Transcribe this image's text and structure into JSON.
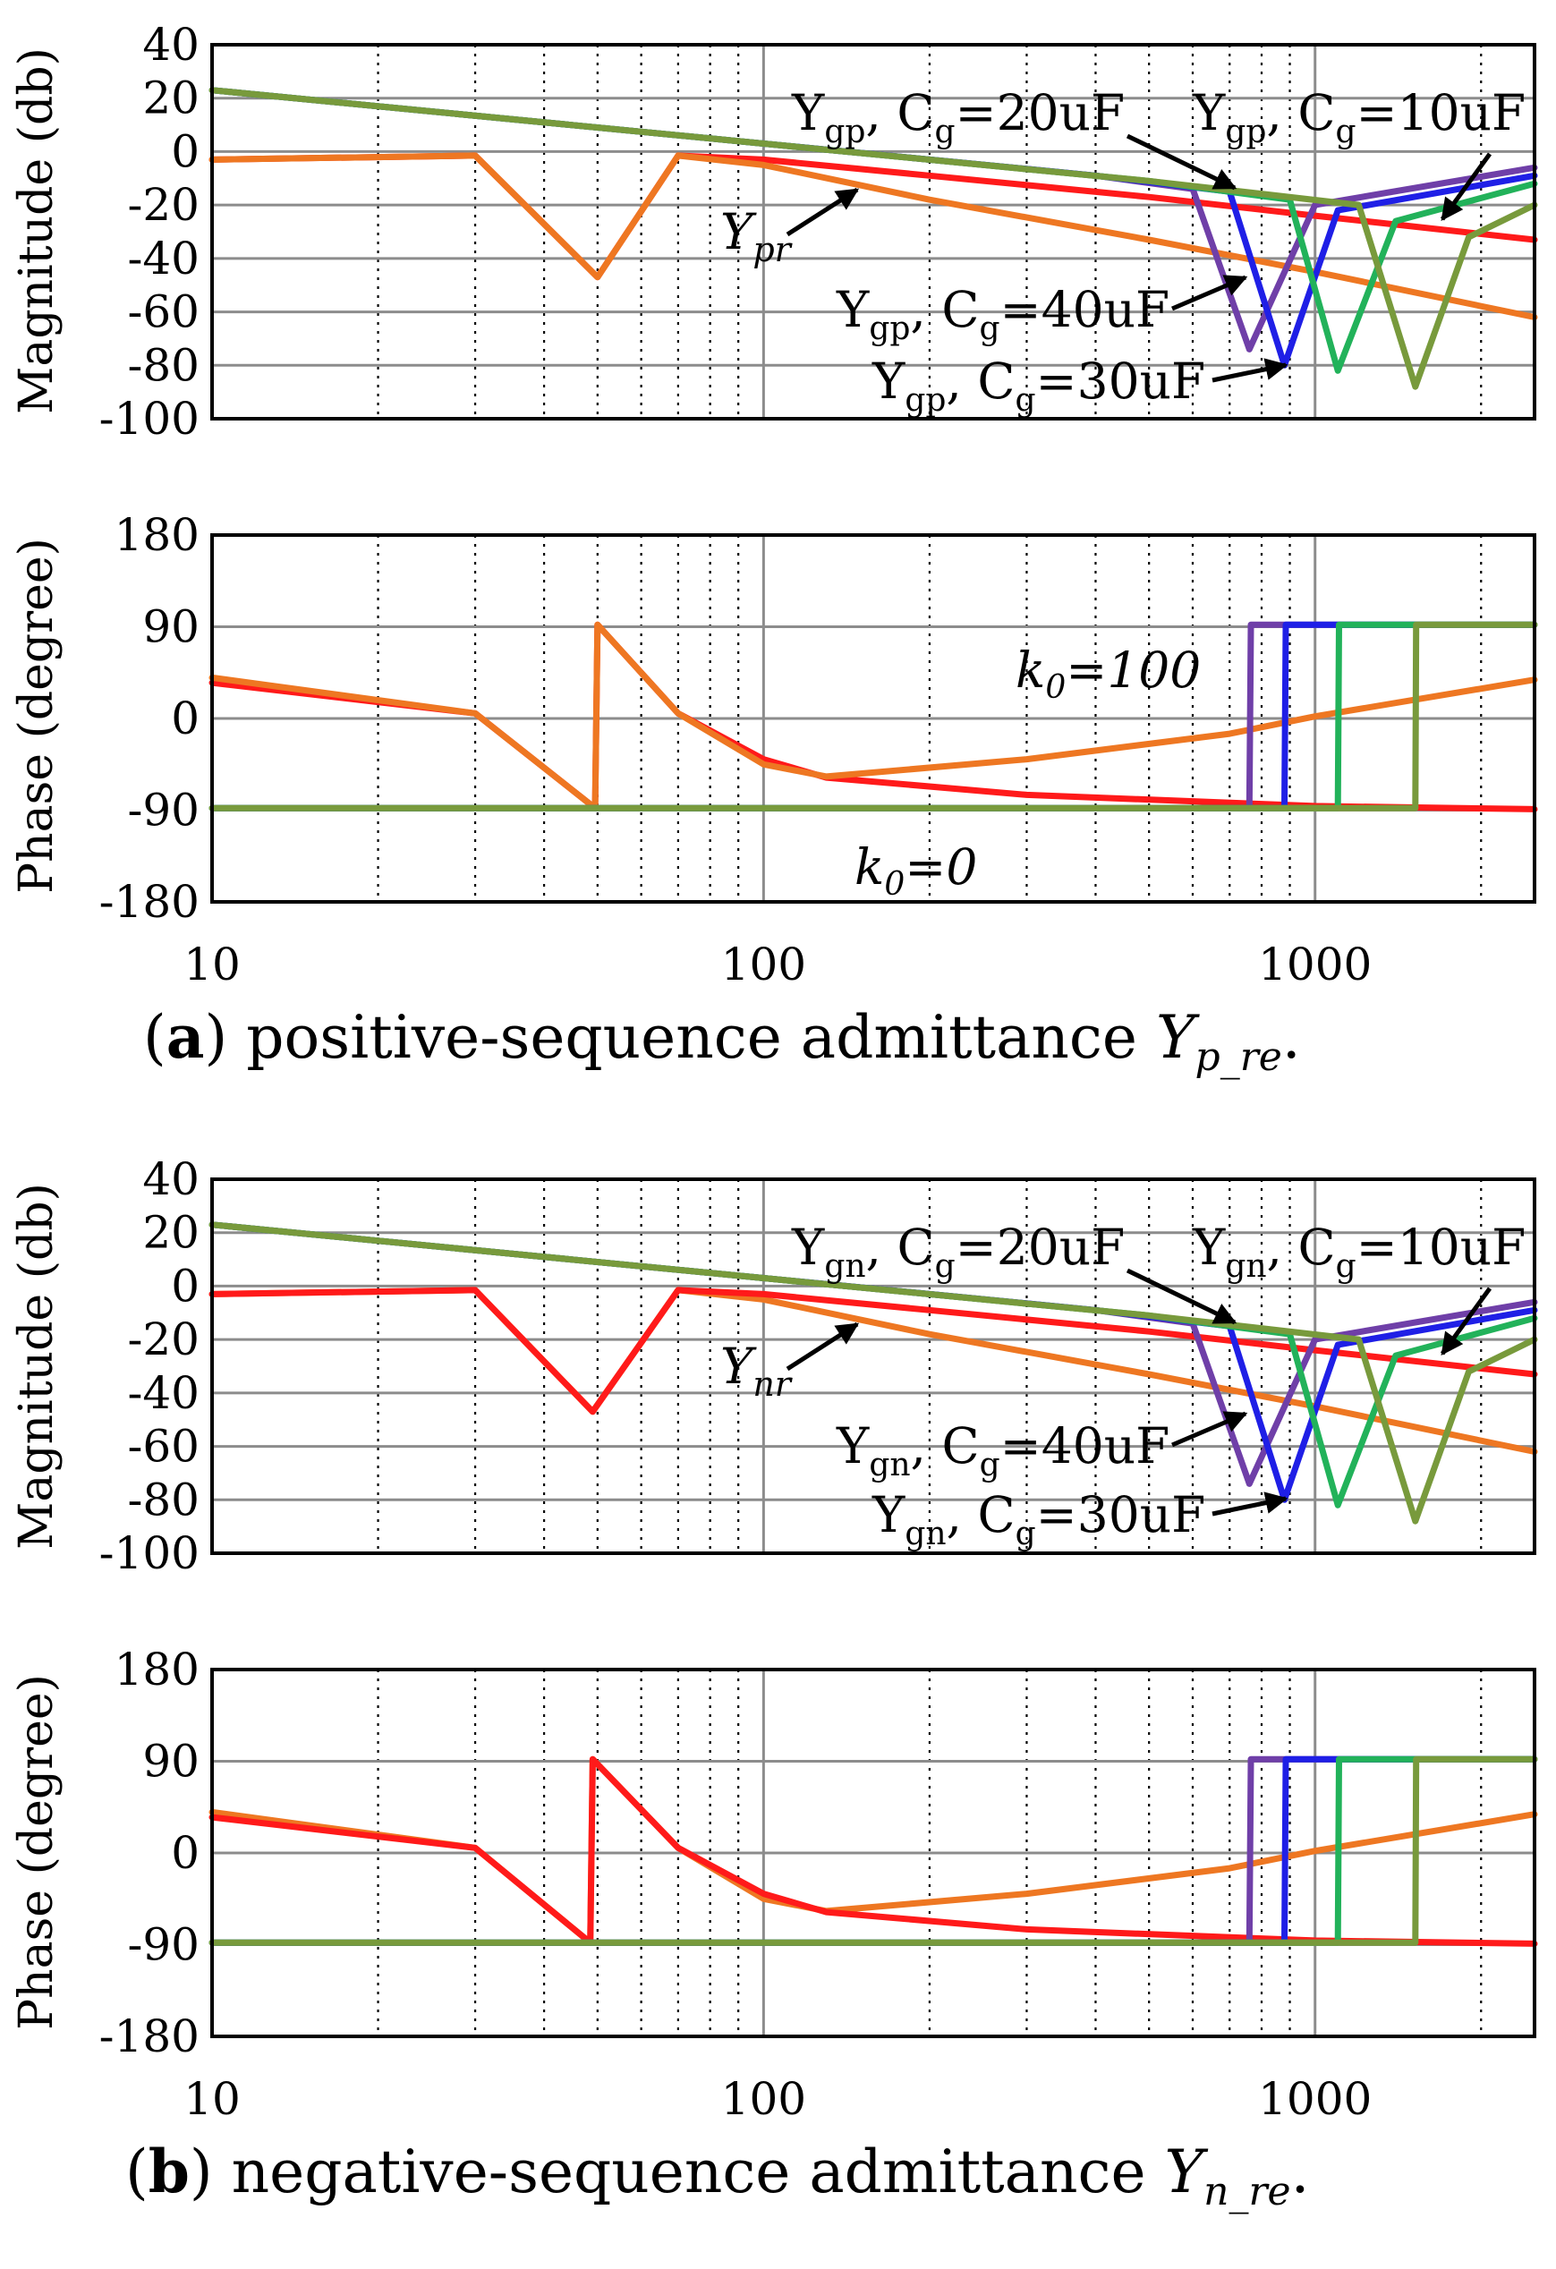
{
  "figure": {
    "caption_a": {
      "label": "a",
      "text": "positive-sequence admittance",
      "symbol": "Y",
      "subscript": "p_re",
      "tail": "."
    },
    "caption_b": {
      "label": "b",
      "text": "negative-sequence admittance",
      "symbol": "Y",
      "subscript": "n_re",
      "tail": "."
    }
  },
  "chart_data": [
    {
      "panel": "a-magnitude",
      "type": "line",
      "xscale": "log",
      "xlim": [
        10,
        2500
      ],
      "ylim": [
        -100,
        40
      ],
      "ylabel": "Magnitude (db)",
      "yticks": [
        "40",
        "20",
        "0",
        "-20",
        "-40",
        "-60",
        "-80",
        "-100"
      ],
      "annotations": {
        "y_main": "Y",
        "y_main_sub": "pr",
        "c20_sym": "Y",
        "c20_sub": "gp",
        "c20_mid": ", C",
        "c20_csub": "g",
        "c20_val": "=20uF",
        "c10_sym": "Y",
        "c10_sub": "gp",
        "c10_mid": ", C",
        "c10_csub": "g",
        "c10_val": "=10uF",
        "c40_sym": "Y",
        "c40_sub": "gp",
        "c40_mid": ", C",
        "c40_csub": "g",
        "c40_val": "=40uF",
        "c30_sym": "Y",
        "c30_sub": "gp",
        "c30_mid": ", C",
        "c30_csub": "g",
        "c30_val": "=30uF"
      },
      "series": [
        {
          "name": "Y_pr (k0=0)",
          "color": "#ff1a1a",
          "points": [
            [
              10,
              -3
            ],
            [
              30,
              -1.5
            ],
            [
              50,
              -47
            ],
            [
              70,
              -1.5
            ],
            [
              100,
              -3
            ],
            [
              200,
              -9
            ],
            [
              500,
              -17
            ],
            [
              1000,
              -24
            ],
            [
              2500,
              -33
            ]
          ]
        },
        {
          "name": "Y_pr (k0=100)",
          "color": "#ee7722",
          "points": [
            [
              10,
              -3
            ],
            [
              30,
              -1.5
            ],
            [
              50,
              -47
            ],
            [
              70,
              -1.5
            ],
            [
              100,
              -5
            ],
            [
              200,
              -18
            ],
            [
              500,
              -33
            ],
            [
              1000,
              -45
            ],
            [
              2500,
              -62
            ]
          ]
        },
        {
          "name": "Y_gp, Cg=40uF",
          "color": "#6f3fa8",
          "points": [
            [
              10,
              23
            ],
            [
              100,
              3
            ],
            [
              400,
              -9
            ],
            [
              600,
              -14
            ],
            [
              760,
              -74
            ],
            [
              1000,
              -20
            ],
            [
              2500,
              -6
            ]
          ]
        },
        {
          "name": "Y_gp, Cg=30uF",
          "color": "#1f1fe6",
          "points": [
            [
              10,
              23
            ],
            [
              100,
              3
            ],
            [
              400,
              -9
            ],
            [
              700,
              -15
            ],
            [
              880,
              -80
            ],
            [
              1100,
              -22
            ],
            [
              2500,
              -9
            ]
          ]
        },
        {
          "name": "Y_gp, Cg=20uF",
          "color": "#22b25a",
          "points": [
            [
              10,
              23
            ],
            [
              100,
              3
            ],
            [
              500,
              -11
            ],
            [
              900,
              -18
            ],
            [
              1100,
              -82
            ],
            [
              1400,
              -26
            ],
            [
              2500,
              -12
            ]
          ]
        },
        {
          "name": "Y_gp, Cg=10uF",
          "color": "#789a3c",
          "points": [
            [
              10,
              23
            ],
            [
              100,
              3
            ],
            [
              500,
              -11
            ],
            [
              1200,
              -20
            ],
            [
              1520,
              -88
            ],
            [
              1900,
              -32
            ],
            [
              2500,
              -20
            ]
          ]
        }
      ]
    },
    {
      "panel": "a-phase",
      "type": "line",
      "xscale": "log",
      "xlim": [
        10,
        2500
      ],
      "ylim": [
        -180,
        180
      ],
      "ylabel": "Phase (degree)",
      "yticks": [
        "180",
        "90",
        "0",
        "-90",
        "-180"
      ],
      "xticks": [
        "10",
        "100",
        "1000"
      ],
      "annotations": {
        "k100_k": "k",
        "k100_sub": "0",
        "k100_val": "=100",
        "k0_k": "k",
        "k0_sub": "0",
        "k0_val": "=0"
      },
      "series": [
        {
          "name": "k0=0",
          "color": "#ff1a1a",
          "points": [
            [
              10,
              35
            ],
            [
              30,
              5
            ],
            [
              49.5,
              -88
            ],
            [
              50,
              92
            ],
            [
              70,
              5
            ],
            [
              100,
              -40
            ],
            [
              130,
              -58
            ],
            [
              300,
              -75
            ],
            [
              1000,
              -86
            ],
            [
              2500,
              -89
            ]
          ]
        },
        {
          "name": "k0=100",
          "color": "#ee7722",
          "points": [
            [
              10,
              40
            ],
            [
              30,
              5
            ],
            [
              49.5,
              -88
            ],
            [
              50,
              92
            ],
            [
              70,
              5
            ],
            [
              100,
              -45
            ],
            [
              130,
              -57
            ],
            [
              300,
              -40
            ],
            [
              700,
              -15
            ],
            [
              1000,
              2
            ],
            [
              2500,
              38
            ]
          ]
        },
        {
          "name": "Cg=40uF",
          "color": "#6f3fa8",
          "points": [
            [
              10,
              -88
            ],
            [
              760,
              -88
            ],
            [
              765,
              92
            ],
            [
              2500,
              92
            ]
          ]
        },
        {
          "name": "Cg=30uF",
          "color": "#1f1fe6",
          "points": [
            [
              10,
              -88
            ],
            [
              880,
              -88
            ],
            [
              885,
              92
            ],
            [
              2500,
              92
            ]
          ]
        },
        {
          "name": "Cg=20uF",
          "color": "#22b25a",
          "points": [
            [
              10,
              -88
            ],
            [
              1100,
              -88
            ],
            [
              1105,
              92
            ],
            [
              2500,
              92
            ]
          ]
        },
        {
          "name": "Cg=10uF",
          "color": "#789a3c",
          "points": [
            [
              10,
              -88
            ],
            [
              1520,
              -88
            ],
            [
              1525,
              92
            ],
            [
              2500,
              92
            ]
          ]
        }
      ]
    },
    {
      "panel": "b-magnitude",
      "type": "line",
      "xscale": "log",
      "xlim": [
        10,
        2500
      ],
      "ylim": [
        -100,
        40
      ],
      "ylabel": "Magnitude (db)",
      "yticks": [
        "40",
        "20",
        "0",
        "-20",
        "-40",
        "-60",
        "-80",
        "-100"
      ],
      "annotations": {
        "y_main": "Y",
        "y_main_sub": "nr",
        "c20_sym": "Y",
        "c20_sub": "gn",
        "c20_mid": ", C",
        "c20_csub": "g",
        "c20_val": "=20uF",
        "c10_sym": "Y",
        "c10_sub": "gn",
        "c10_mid": ", C",
        "c10_csub": "g",
        "c10_val": "=10uF",
        "c40_sym": "Y",
        "c40_sub": "gn",
        "c40_mid": ", C",
        "c40_csub": "g",
        "c40_val": "=40uF",
        "c30_sym": "Y",
        "c30_sub": "gn",
        "c30_mid": ", C",
        "c30_csub": "g",
        "c30_val": "=30uF"
      },
      "series": [
        {
          "name": "Y_nr (k0=100)",
          "color": "#ee7722",
          "points": [
            [
              10,
              -3
            ],
            [
              30,
              -1.5
            ],
            [
              49,
              -47
            ],
            [
              70,
              -1.5
            ],
            [
              100,
              -5
            ],
            [
              200,
              -18
            ],
            [
              500,
              -33
            ],
            [
              1000,
              -45
            ],
            [
              2500,
              -62
            ]
          ]
        },
        {
          "name": "Y_nr (k0=0)",
          "color": "#ff1a1a",
          "points": [
            [
              10,
              -3
            ],
            [
              30,
              -1.5
            ],
            [
              49,
              -47
            ],
            [
              70,
              -1.5
            ],
            [
              100,
              -3
            ],
            [
              200,
              -9
            ],
            [
              500,
              -17
            ],
            [
              1000,
              -24
            ],
            [
              2500,
              -33
            ]
          ]
        },
        {
          "name": "Y_gn, Cg=40uF",
          "color": "#6f3fa8",
          "points": [
            [
              10,
              23
            ],
            [
              100,
              3
            ],
            [
              400,
              -9
            ],
            [
              600,
              -14
            ],
            [
              760,
              -74
            ],
            [
              1000,
              -20
            ],
            [
              2500,
              -6
            ]
          ]
        },
        {
          "name": "Y_gn, Cg=30uF",
          "color": "#1f1fe6",
          "points": [
            [
              10,
              23
            ],
            [
              100,
              3
            ],
            [
              400,
              -9
            ],
            [
              700,
              -15
            ],
            [
              880,
              -80
            ],
            [
              1100,
              -22
            ],
            [
              2500,
              -9
            ]
          ]
        },
        {
          "name": "Y_gn, Cg=20uF",
          "color": "#22b25a",
          "points": [
            [
              10,
              23
            ],
            [
              100,
              3
            ],
            [
              500,
              -11
            ],
            [
              900,
              -18
            ],
            [
              1100,
              -82
            ],
            [
              1400,
              -26
            ],
            [
              2500,
              -12
            ]
          ]
        },
        {
          "name": "Y_gn, Cg=10uF",
          "color": "#789a3c",
          "points": [
            [
              10,
              23
            ],
            [
              100,
              3
            ],
            [
              500,
              -11
            ],
            [
              1200,
              -20
            ],
            [
              1520,
              -88
            ],
            [
              1900,
              -32
            ],
            [
              2500,
              -20
            ]
          ]
        }
      ]
    },
    {
      "panel": "b-phase",
      "type": "line",
      "xscale": "log",
      "xlim": [
        10,
        2500
      ],
      "ylim": [
        -180,
        180
      ],
      "ylabel": "Phase (degree)",
      "yticks": [
        "180",
        "90",
        "0",
        "-90",
        "-180"
      ],
      "xticks": [
        "10",
        "100",
        "1000"
      ],
      "series": [
        {
          "name": "k0=100",
          "color": "#ee7722",
          "points": [
            [
              10,
              40
            ],
            [
              30,
              5
            ],
            [
              48.5,
              -88
            ],
            [
              49,
              92
            ],
            [
              70,
              5
            ],
            [
              100,
              -45
            ],
            [
              130,
              -57
            ],
            [
              300,
              -40
            ],
            [
              700,
              -15
            ],
            [
              1000,
              2
            ],
            [
              2500,
              38
            ]
          ]
        },
        {
          "name": "k0=0",
          "color": "#ff1a1a",
          "points": [
            [
              10,
              35
            ],
            [
              30,
              5
            ],
            [
              48.5,
              -88
            ],
            [
              49,
              92
            ],
            [
              70,
              5
            ],
            [
              100,
              -40
            ],
            [
              130,
              -58
            ],
            [
              300,
              -75
            ],
            [
              1000,
              -86
            ],
            [
              2500,
              -89
            ]
          ]
        },
        {
          "name": "Cg=40uF",
          "color": "#6f3fa8",
          "points": [
            [
              10,
              -88
            ],
            [
              760,
              -88
            ],
            [
              765,
              92
            ],
            [
              2500,
              92
            ]
          ]
        },
        {
          "name": "Cg=30uF",
          "color": "#1f1fe6",
          "points": [
            [
              10,
              -88
            ],
            [
              880,
              -88
            ],
            [
              885,
              92
            ],
            [
              2500,
              92
            ]
          ]
        },
        {
          "name": "Cg=20uF",
          "color": "#22b25a",
          "points": [
            [
              10,
              -88
            ],
            [
              1100,
              -88
            ],
            [
              1105,
              92
            ],
            [
              2500,
              92
            ]
          ]
        },
        {
          "name": "Cg=10uF",
          "color": "#789a3c",
          "points": [
            [
              10,
              -88
            ],
            [
              1520,
              -88
            ],
            [
              1525,
              92
            ],
            [
              2500,
              92
            ]
          ]
        }
      ]
    }
  ]
}
